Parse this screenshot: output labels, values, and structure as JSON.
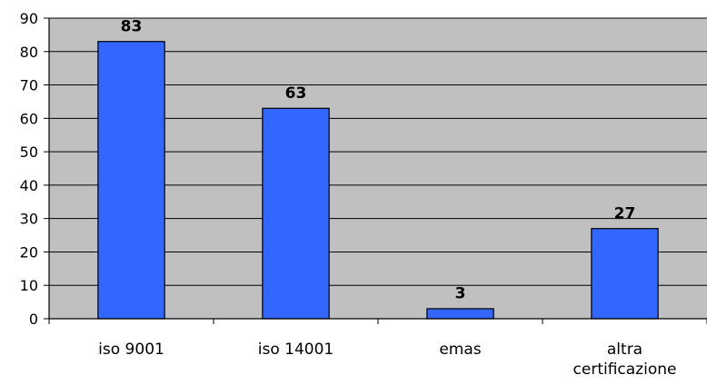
{
  "chart_data": {
    "type": "bar",
    "categories": [
      [
        "iso 9001"
      ],
      [
        "iso 14001"
      ],
      [
        "emas"
      ],
      [
        "altra",
        "certificazione"
      ]
    ],
    "values": [
      83,
      63,
      3,
      27
    ],
    "data_labels": [
      "83",
      "63",
      "3",
      "27"
    ],
    "ylim": [
      0,
      90
    ],
    "yticks": [
      0,
      10,
      20,
      30,
      40,
      50,
      60,
      70,
      80,
      90
    ],
    "grid": true,
    "legend": "none",
    "colors": {
      "plot_background": "#c0c0c0",
      "bar_fill": "#3366ff",
      "bar_stroke": "#000000",
      "gridline": "#000000"
    }
  }
}
